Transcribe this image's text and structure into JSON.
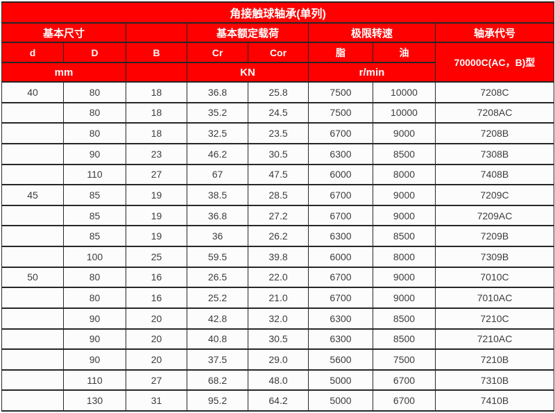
{
  "table": {
    "title": "角接触球轴承(单列)",
    "group_headers": {
      "basic_dimensions": "基本尺寸",
      "basic_load_rating": "基本额定载荷",
      "limit_speed": "极限转速",
      "bearing_code": "轴承代号"
    },
    "sub_headers": {
      "d": "d",
      "D": "D",
      "B": "B",
      "Cr": "Cr",
      "Cor": "Cor",
      "grease": "脂",
      "oil": "油"
    },
    "bearing_code_type": "70000C(AC，B)型",
    "units": {
      "dimensions": "mm",
      "load": "KN",
      "speed": "r/min"
    },
    "rows": [
      [
        "40",
        "80",
        "18",
        "36.8",
        "25.8",
        "7500",
        "10000",
        "7208C"
      ],
      [
        "",
        "80",
        "18",
        "35.2",
        "24.5",
        "7500",
        "10000",
        "7208AC"
      ],
      [
        "",
        "80",
        "18",
        "32.5",
        "23.5",
        "6700",
        "9000",
        "7208B"
      ],
      [
        "",
        "90",
        "23",
        "46.2",
        "30.5",
        "6300",
        "8500",
        "7308B"
      ],
      [
        "",
        "110",
        "27",
        "67",
        "47.5",
        "6000",
        "8000",
        "7408B"
      ],
      [
        "45",
        "85",
        "19",
        "38.5",
        "28.5",
        "6700",
        "9000",
        "7209C"
      ],
      [
        "",
        "85",
        "19",
        "36.8",
        "27.2",
        "6700",
        "9000",
        "7209AC"
      ],
      [
        "",
        "85",
        "19",
        "36",
        "26.2",
        "6300",
        "8500",
        "7209B"
      ],
      [
        "",
        "100",
        "25",
        "59.5",
        "39.8",
        "6000",
        "8000",
        "7309B"
      ],
      [
        "50",
        "80",
        "16",
        "26.5",
        "22.0",
        "6700",
        "9000",
        "7010C"
      ],
      [
        "",
        "80",
        "16",
        "25.2",
        "21.0",
        "6700",
        "9000",
        "7010AC"
      ],
      [
        "",
        "90",
        "20",
        "42.8",
        "32.0",
        "6300",
        "8500",
        "7210C"
      ],
      [
        "",
        "90",
        "20",
        "40.8",
        "30.5",
        "6300",
        "8500",
        "7210AC"
      ],
      [
        "",
        "90",
        "20",
        "37.5",
        "29.0",
        "5600",
        "7500",
        "7210B"
      ],
      [
        "",
        "110",
        "27",
        "68.2",
        "48.0",
        "5000",
        "6700",
        "7310B"
      ],
      [
        "",
        "130",
        "31",
        "95.2",
        "64.2",
        "5000",
        "6700",
        "7410B"
      ]
    ]
  },
  "colors": {
    "header_red": "#fe0000",
    "header_text": "#ffffff",
    "grid_line": "#262626",
    "cell_background": "#fcfcfc",
    "body_text": "#3c3c3c"
  }
}
